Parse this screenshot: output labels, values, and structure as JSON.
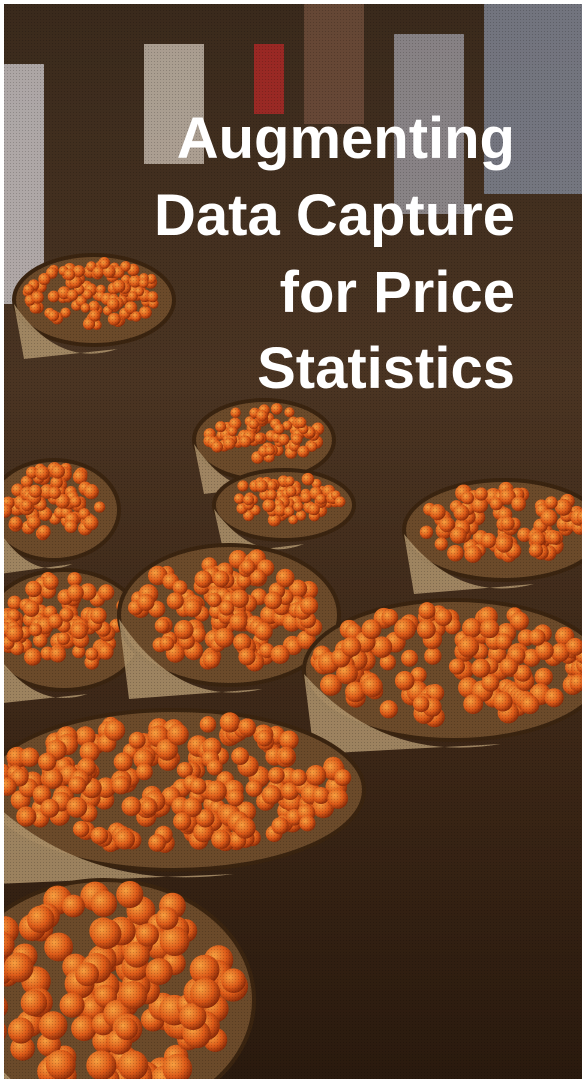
{
  "title": {
    "lines": [
      "Augmenting",
      "Data Capture",
      "for Price",
      "Statistics"
    ]
  }
}
